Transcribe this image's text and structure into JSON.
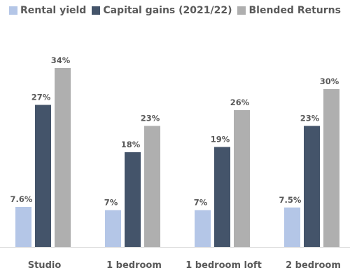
{
  "chart_data": {
    "type": "bar",
    "categories": [
      "Studio",
      "1 bedroom",
      "1 bedroom loft",
      "2 bedroom"
    ],
    "series": [
      {
        "name": "Rental yield",
        "values": [
          7.6,
          7,
          7,
          7.5
        ],
        "labels": [
          "7.6%",
          "7%",
          "7%",
          "7.5%"
        ],
        "color": "#b4c6e7"
      },
      {
        "name": "Capital gains (2021/22)",
        "values": [
          27,
          18,
          19,
          23
        ],
        "labels": [
          "27%",
          "18%",
          "19%",
          "23%"
        ],
        "color": "#44546a"
      },
      {
        "name": "Blended Returns",
        "values": [
          34,
          23,
          26,
          30
        ],
        "labels": [
          "34%",
          "23%",
          "26%",
          "30%"
        ],
        "color": "#afafaf"
      }
    ],
    "title": "",
    "xlabel": "",
    "ylabel": "",
    "legend_position": "top",
    "grid": false
  }
}
